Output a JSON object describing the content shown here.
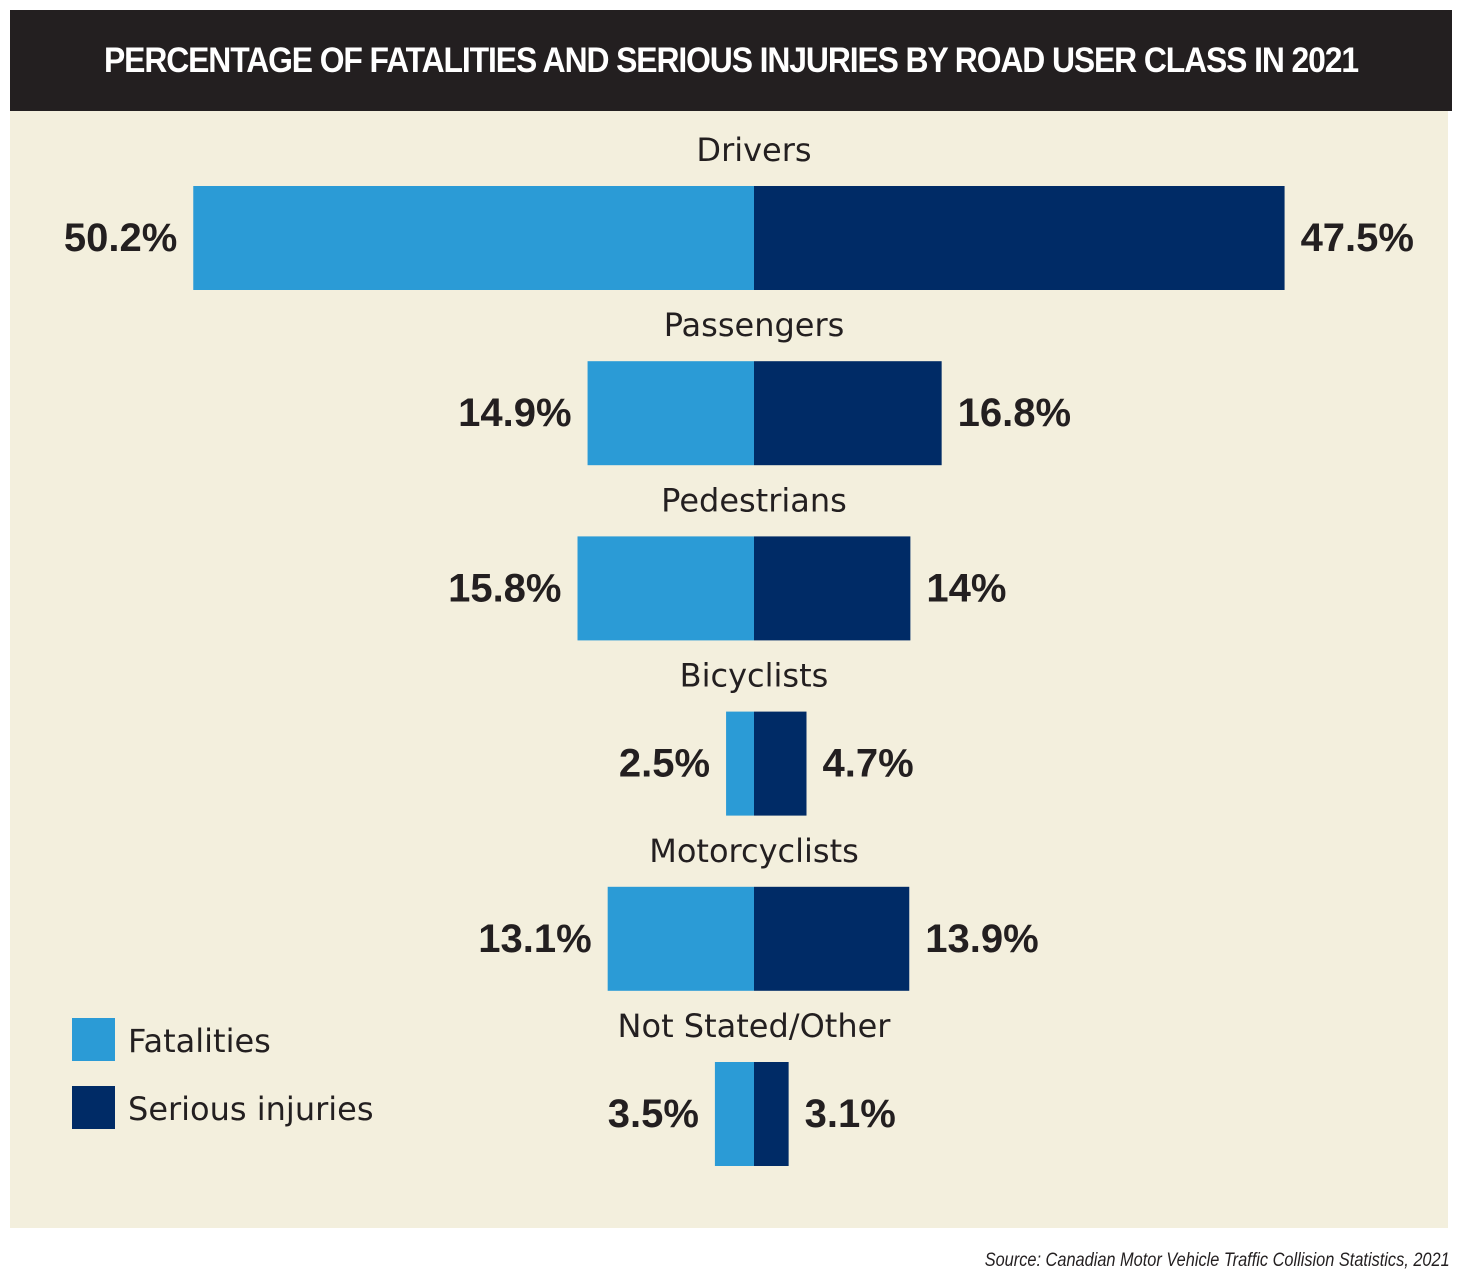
{
  "chart_data": {
    "type": "bar",
    "orientation": "diverging-horizontal",
    "title": "PERCENTAGE OF FATALITIES AND SERIOUS INJURIES BY ROAD USER CLASS IN 2021",
    "categories": [
      "Drivers",
      "Passengers",
      "Pedestrians",
      "Bicyclists",
      "Motorcyclists",
      "Not Stated/Other"
    ],
    "series": [
      {
        "name": "Fatalities",
        "color": "#2b9bd6",
        "side": "left",
        "values": [
          50.2,
          14.9,
          15.8,
          2.5,
          13.1,
          3.5
        ],
        "labels": [
          "50.2%",
          "14.9%",
          "15.8%",
          "2.5%",
          "13.1%",
          "3.5%"
        ]
      },
      {
        "name": "Serious injuries",
        "color": "#002b66",
        "side": "right",
        "values": [
          47.5,
          16.8,
          14,
          4.7,
          13.9,
          3.1
        ],
        "labels": [
          "47.5%",
          "16.8%",
          "14%",
          "4.7%",
          "13.9%",
          "3.1%"
        ]
      }
    ],
    "legend": "bottom-left",
    "grid": false
  },
  "source": "Source: Canadian Motor Vehicle Traffic Collision Statistics, 2021"
}
